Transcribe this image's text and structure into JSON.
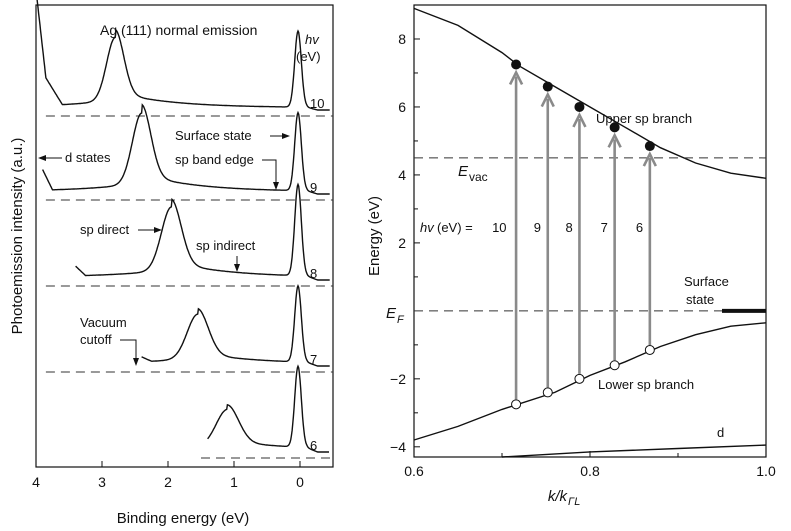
{
  "chart_data": [
    {
      "type": "line",
      "panel": "left",
      "title": "Ag (111) normal emission",
      "xlabel": "Binding energy (eV)",
      "ylabel": "Photoemission intensity (a.u.)",
      "xlim": [
        4,
        -0.5
      ],
      "xticks": [
        4,
        3,
        2,
        1,
        0
      ],
      "hv_header": [
        "hv",
        "(eV)"
      ],
      "series": [
        {
          "name": "10",
          "d_peak": 2.8,
          "sp_peak": 0.03,
          "cutoff": 4.0
        },
        {
          "name": "9",
          "d_peak": 2.4,
          "sp_peak": 0.03,
          "cutoff": 3.9
        },
        {
          "name": "8",
          "d_peak": 1.95,
          "sp_peak": 0.03,
          "cutoff": 3.4
        },
        {
          "name": "7",
          "d_peak": 1.55,
          "sp_peak": 0.03,
          "cutoff": 2.4
        },
        {
          "name": "6",
          "d_peak": 1.1,
          "sp_peak": 0.03,
          "cutoff": 1.4
        }
      ],
      "annotations": [
        {
          "text": "d states"
        },
        {
          "text": "Surface state"
        },
        {
          "text": "sp band edge"
        },
        {
          "text": "sp direct"
        },
        {
          "text": "sp indirect"
        },
        {
          "text": "Vacuum"
        },
        {
          "text": "cutoff"
        }
      ]
    },
    {
      "type": "line",
      "panel": "right",
      "xlabel_main": "k/k",
      "xlabel_sub": "ΓL",
      "ylabel": "Energy (eV)",
      "xlim": [
        0.6,
        1.0
      ],
      "ylim": [
        -4.3,
        9
      ],
      "xticks": [
        0.6,
        0.8,
        1.0
      ],
      "yticks": [
        -4,
        -2,
        2,
        4,
        6,
        8
      ],
      "e_vac": 4.5,
      "e_f": 0,
      "upper_band": [
        [
          0.6,
          8.9
        ],
        [
          0.65,
          8.4
        ],
        [
          0.7,
          7.6
        ],
        [
          0.72,
          7.2
        ],
        [
          0.76,
          6.6
        ],
        [
          0.8,
          6.0
        ],
        [
          0.84,
          5.4
        ],
        [
          0.88,
          4.8
        ],
        [
          0.92,
          4.35
        ],
        [
          0.96,
          4.05
        ],
        [
          1.0,
          3.9
        ]
      ],
      "lower_band": [
        [
          0.6,
          -3.8
        ],
        [
          0.65,
          -3.4
        ],
        [
          0.7,
          -2.9
        ],
        [
          0.76,
          -2.4
        ],
        [
          0.8,
          -1.9
        ],
        [
          0.84,
          -1.5
        ],
        [
          0.88,
          -1.05
        ],
        [
          0.92,
          -0.7
        ],
        [
          0.96,
          -0.45
        ],
        [
          1.0,
          -0.35
        ]
      ],
      "d_band": [
        [
          0.7,
          -4.3
        ],
        [
          0.8,
          -4.15
        ],
        [
          0.9,
          -4.05
        ],
        [
          1.0,
          -3.95
        ]
      ],
      "surface_state": [
        [
          0.95,
          0
        ],
        [
          1.0,
          0
        ]
      ],
      "transitions": [
        {
          "hv": "10",
          "k": 0.716,
          "initial": -2.75,
          "final": 7.25
        },
        {
          "hv": "9",
          "k": 0.752,
          "initial": -2.4,
          "final": 6.6
        },
        {
          "hv": "8",
          "k": 0.788,
          "initial": -2.0,
          "final": 6.0
        },
        {
          "hv": "7",
          "k": 0.828,
          "initial": -1.6,
          "final": 5.4
        },
        {
          "hv": "6",
          "k": 0.868,
          "initial": -1.15,
          "final": 4.85
        }
      ],
      "labels": {
        "evac_main": "E",
        "evac_sub": "vac",
        "ef_main": "E",
        "ef_sub": "F",
        "upper": "Upper sp branch",
        "lower": "Lower sp branch",
        "surface1": "Surface",
        "surface2": "state",
        "d": "d",
        "hv_prefix": "hv",
        "hv_unit": " (eV) = "
      }
    }
  ]
}
